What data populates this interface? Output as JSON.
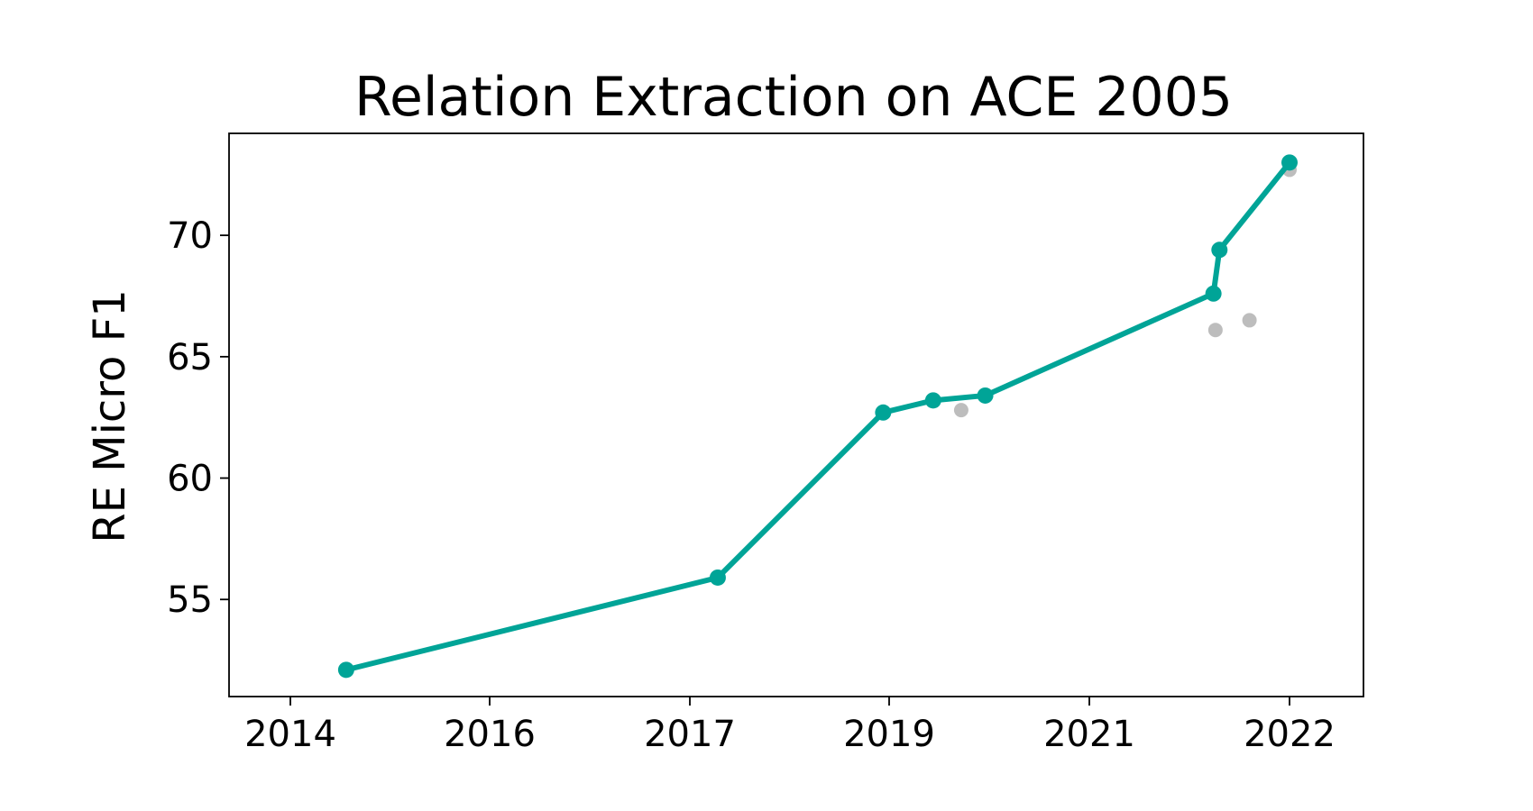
{
  "chart_data": {
    "type": "line",
    "title": "Relation Extraction on ACE 2005",
    "xlabel": "",
    "ylabel": "RE Micro F1",
    "x_tick_labels": [
      "2014",
      "2016",
      "2017",
      "2019",
      "2021",
      "2022"
    ],
    "y_ticks": [
      55,
      60,
      65,
      70
    ],
    "ylim": [
      51,
      74.2
    ],
    "grid": false,
    "series": [
      {
        "role": "frontier",
        "color": "#00a497",
        "points": [
          {
            "x": 0.28,
            "y": 52.1
          },
          {
            "x": 2.14,
            "y": 55.9
          },
          {
            "x": 2.97,
            "y": 62.7
          },
          {
            "x": 3.22,
            "y": 63.2
          },
          {
            "x": 3.48,
            "y": 63.4
          },
          {
            "x": 4.62,
            "y": 67.6
          },
          {
            "x": 4.65,
            "y": 69.4
          },
          {
            "x": 5.18,
            "y": 73.0
          }
        ]
      },
      {
        "role": "other",
        "color": "#bdbdbd",
        "points": [
          {
            "x": 3.36,
            "y": 62.8
          },
          {
            "x": 4.63,
            "y": 66.1
          },
          {
            "x": 4.8,
            "y": 66.5
          },
          {
            "x": 5.85,
            "y": 72.7
          }
        ]
      }
    ]
  }
}
